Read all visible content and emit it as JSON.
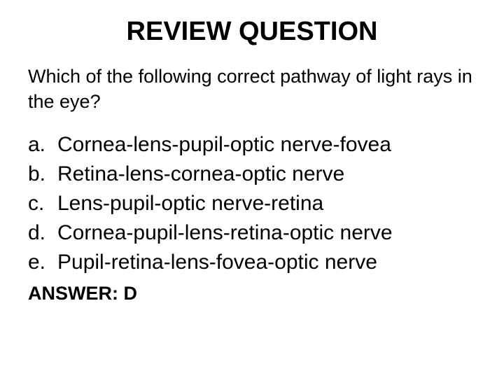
{
  "title": "REVIEW QUESTION",
  "question": "Which of the following correct pathway of light rays in the eye?",
  "options": [
    {
      "letter": "a.",
      "text": "Cornea-lens-pupil-optic nerve-fovea"
    },
    {
      "letter": "b.",
      "text": "Retina-lens-cornea-optic nerve"
    },
    {
      "letter": "c.",
      "text": "Lens-pupil-optic nerve-retina"
    },
    {
      "letter": "d.",
      "text": "Cornea-pupil-lens-retina-optic nerve"
    },
    {
      "letter": "e.",
      "text": "Pupil-retina-lens-fovea-optic nerve"
    }
  ],
  "answer": "ANSWER:  D",
  "colors": {
    "background": "#ffffff",
    "text": "#000000"
  },
  "typography": {
    "title_fontsize": 38,
    "title_weight": "bold",
    "question_fontsize": 27,
    "option_fontsize": 30,
    "answer_fontsize": 27,
    "answer_weight": "bold",
    "font_family": "Arial"
  }
}
